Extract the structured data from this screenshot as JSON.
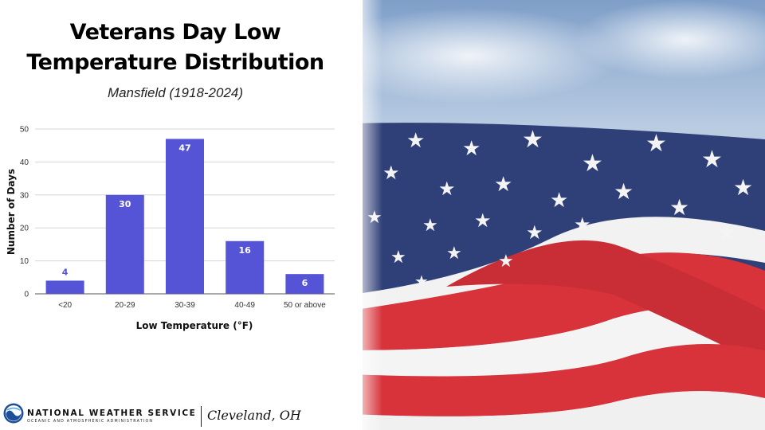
{
  "header": {
    "title_line1": "Veterans Day Low",
    "title_line2": "Temperature Distribution",
    "subtitle": "Mansfield (1918-2024)"
  },
  "chart_data": {
    "type": "bar",
    "categories": [
      "<20",
      "20-29",
      "30-39",
      "40-49",
      "50 or above"
    ],
    "values": [
      4,
      30,
      47,
      16,
      6
    ],
    "data_labels": [
      "4",
      "30",
      "47",
      "16",
      "6"
    ],
    "xlabel": "Low Temperature (°F)",
    "ylabel": "Number of Days",
    "ylim": [
      0,
      50
    ],
    "yticks": [
      0,
      10,
      20,
      30,
      40,
      50
    ],
    "grid": true,
    "bar_color": "#5554d6",
    "label_inside_color": "#ffffff",
    "label_outside_color": "#5554d6"
  },
  "footer": {
    "org_name": "NATIONAL WEATHER SERVICE",
    "org_subtitle": "OCEANIC AND ATMOSPHERIC ADMINISTRATION",
    "office": "Cleveland, OH",
    "logo_icon": "noaa-logo-icon"
  },
  "background": {
    "image": "american-flag-photo",
    "sky_color": "#9fb9d8",
    "flag_blue": "#2f3f78",
    "flag_red": "#d8323a"
  }
}
